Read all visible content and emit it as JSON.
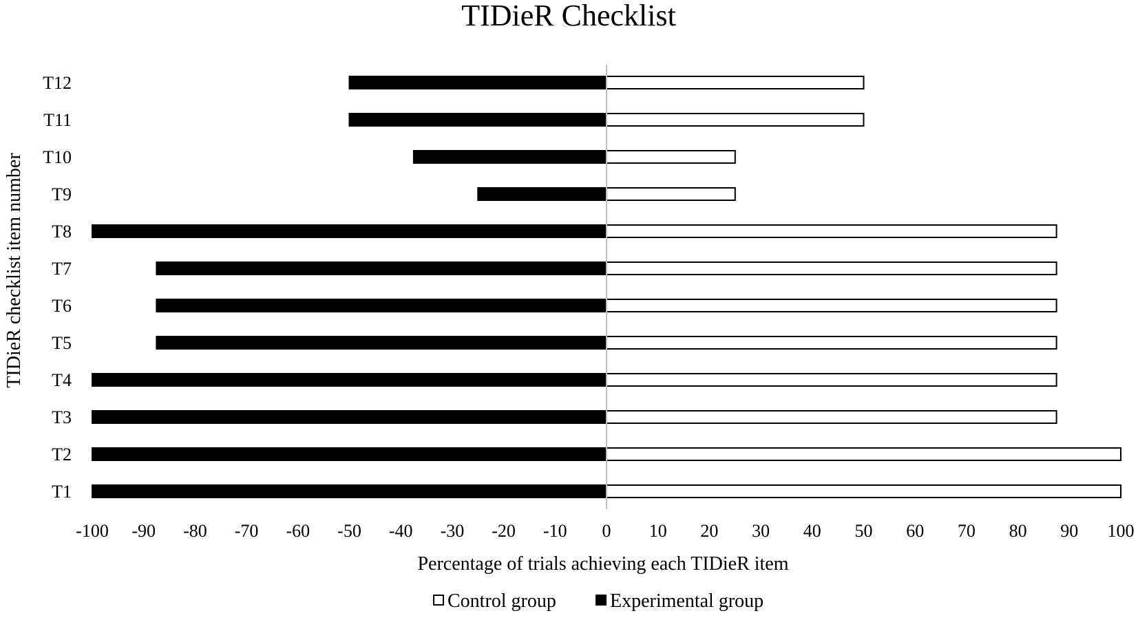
{
  "chart_data": {
    "type": "bar",
    "orientation": "horizontal",
    "title": "TIDieR Checklist",
    "xlabel": "Percentage of trials achieving each TIDieR item",
    "ylabel": "TIDieR checklist item number",
    "categories": [
      "T1",
      "T2",
      "T3",
      "T4",
      "T5",
      "T6",
      "T7",
      "T8",
      "T9",
      "T10",
      "T11",
      "T12"
    ],
    "xlim": [
      -100,
      100
    ],
    "xticks": [
      -100,
      -90,
      -80,
      -70,
      -60,
      -50,
      -40,
      -30,
      -20,
      -10,
      0,
      10,
      20,
      30,
      40,
      50,
      60,
      70,
      80,
      90,
      100
    ],
    "grid": false,
    "legend_position": "bottom",
    "series": [
      {
        "name": "Control group",
        "values": [
          100,
          100,
          87.5,
          87.5,
          87.5,
          87.5,
          87.5,
          87.5,
          25,
          25,
          50,
          50
        ],
        "color": "#ffffff",
        "stroke": "#000000"
      },
      {
        "name": "Experimental group",
        "values": [
          -100,
          -100,
          -100,
          -100,
          -87.5,
          -87.5,
          -87.5,
          -100,
          -25,
          -37.5,
          -50,
          -50
        ],
        "color": "#000000",
        "stroke": "#000000"
      }
    ]
  }
}
